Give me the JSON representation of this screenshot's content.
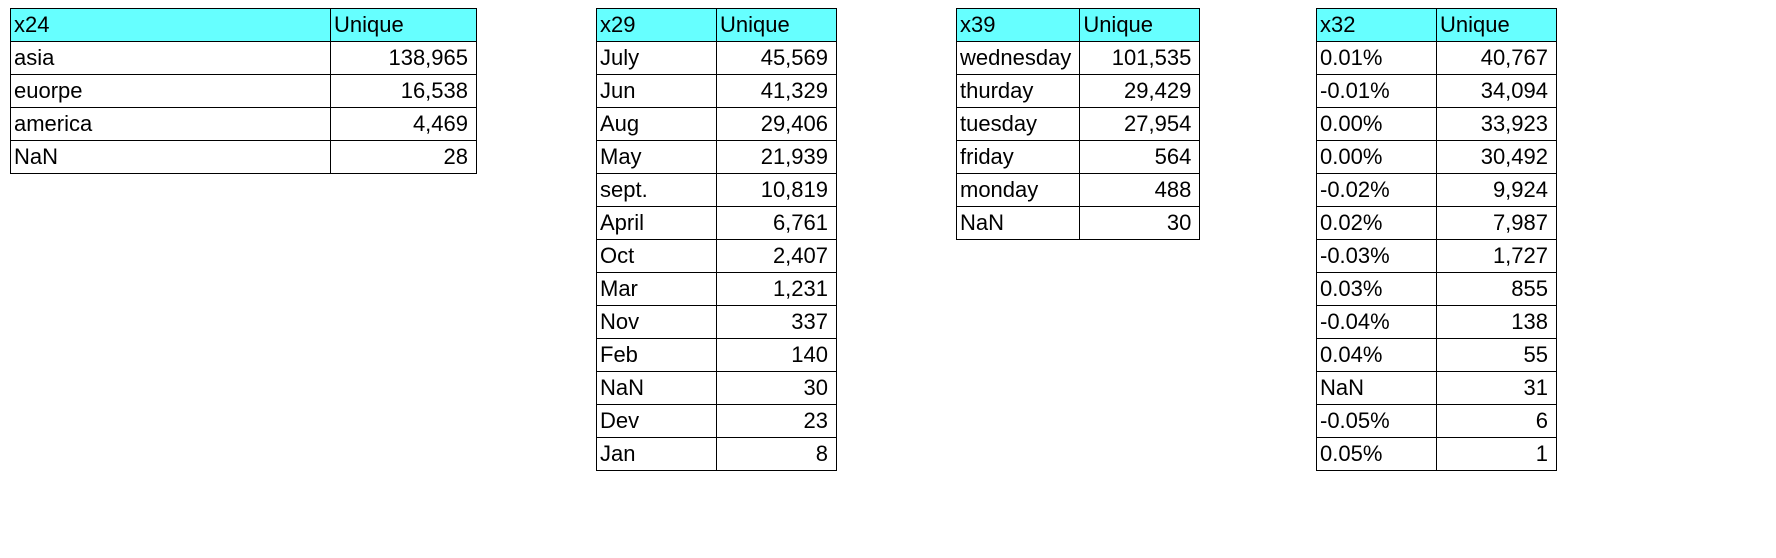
{
  "colors": {
    "header_background": "#66ffff",
    "border": "#000000"
  },
  "tables": [
    {
      "header": [
        "x24",
        "Unique"
      ],
      "rows": [
        [
          "asia",
          "138,965"
        ],
        [
          "euorpe",
          "16,538"
        ],
        [
          "america",
          "4,469"
        ],
        [
          "NaN",
          "28"
        ]
      ]
    },
    {
      "header": [
        "x29",
        "Unique"
      ],
      "rows": [
        [
          "July",
          "45,569"
        ],
        [
          "Jun",
          "41,329"
        ],
        [
          "Aug",
          "29,406"
        ],
        [
          "May",
          "21,939"
        ],
        [
          "sept.",
          "10,819"
        ],
        [
          "April",
          "6,761"
        ],
        [
          "Oct",
          "2,407"
        ],
        [
          "Mar",
          "1,231"
        ],
        [
          "Nov",
          "337"
        ],
        [
          "Feb",
          "140"
        ],
        [
          "NaN",
          "30"
        ],
        [
          "Dev",
          "23"
        ],
        [
          "Jan",
          "8"
        ]
      ]
    },
    {
      "header": [
        "x39",
        "Unique"
      ],
      "rows": [
        [
          "wednesday",
          "101,535"
        ],
        [
          "thurday",
          "29,429"
        ],
        [
          "tuesday",
          "27,954"
        ],
        [
          "friday",
          "564"
        ],
        [
          "monday",
          "488"
        ],
        [
          "NaN",
          "30"
        ]
      ]
    },
    {
      "header": [
        "x32",
        "Unique"
      ],
      "rows": [
        [
          "0.01%",
          "40,767"
        ],
        [
          "-0.01%",
          "34,094"
        ],
        [
          "0.00%",
          "33,923"
        ],
        [
          "0.00%",
          "30,492"
        ],
        [
          "-0.02%",
          "9,924"
        ],
        [
          "0.02%",
          "7,987"
        ],
        [
          "-0.03%",
          "1,727"
        ],
        [
          "0.03%",
          "855"
        ],
        [
          "-0.04%",
          "138"
        ],
        [
          "0.04%",
          "55"
        ],
        [
          "NaN",
          "31"
        ],
        [
          "-0.05%",
          "6"
        ],
        [
          "0.05%",
          "1"
        ]
      ]
    }
  ]
}
